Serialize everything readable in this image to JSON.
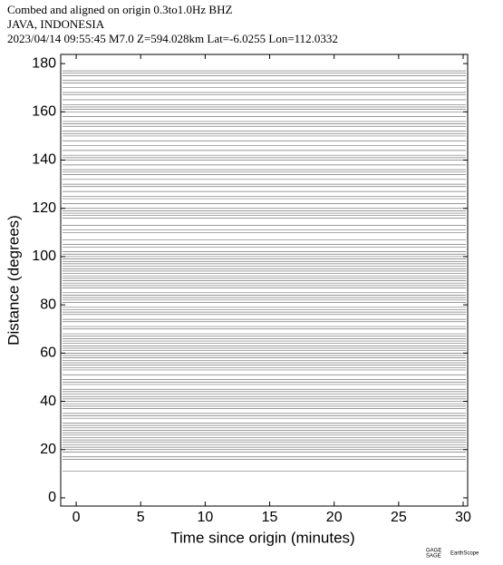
{
  "chart_data": {
    "type": "record-section",
    "title_lines": [
      "Combed and aligned on origin  0.3to1.0Hz  BHZ",
      "JAVA, INDONESIA",
      "2023/04/14  09:55:45  M7.0  Z=594.028km Lat=-6.0255 Lon=112.0332"
    ],
    "x_label": "Time since origin (minutes)",
    "y_label": "Distance (degrees)",
    "xlim": [
      -1.2,
      30.35
    ],
    "ylim": [
      -3.4,
      183.8
    ],
    "xticks": [
      0,
      5,
      10,
      15,
      20,
      25,
      30
    ],
    "yticks": [
      0,
      20,
      40,
      60,
      80,
      100,
      120,
      140,
      160,
      180
    ],
    "trace_color": "#777777",
    "trace_distances": [
      11,
      16,
      17,
      19,
      20,
      21,
      22,
      23,
      24,
      25,
      26,
      27,
      28,
      29,
      30,
      31,
      33,
      34,
      35,
      37,
      38,
      39,
      40,
      41,
      42,
      43,
      44,
      45,
      47,
      48,
      49,
      51,
      53,
      54,
      55,
      56,
      57,
      58,
      59,
      60,
      61,
      62,
      63,
      64,
      65,
      66,
      67,
      68,
      70,
      71,
      73,
      74,
      76,
      77,
      78,
      79,
      81,
      82,
      83,
      84,
      85,
      87,
      88,
      89,
      90,
      91,
      92,
      93,
      94,
      95,
      96,
      97,
      98,
      99,
      100,
      101,
      102,
      104,
      105,
      107,
      110,
      111,
      113,
      116,
      117,
      118,
      119,
      120,
      122,
      124,
      125,
      127,
      129,
      130,
      132,
      134,
      135,
      136,
      138,
      140,
      141,
      142,
      144,
      146,
      148,
      150,
      151,
      152,
      154,
      155,
      156,
      158,
      160,
      161,
      162,
      163,
      165,
      167,
      168,
      170,
      172,
      173,
      175,
      176,
      177
    ],
    "logos": [
      "GAGE",
      "SAGE",
      "EarthScope"
    ]
  }
}
